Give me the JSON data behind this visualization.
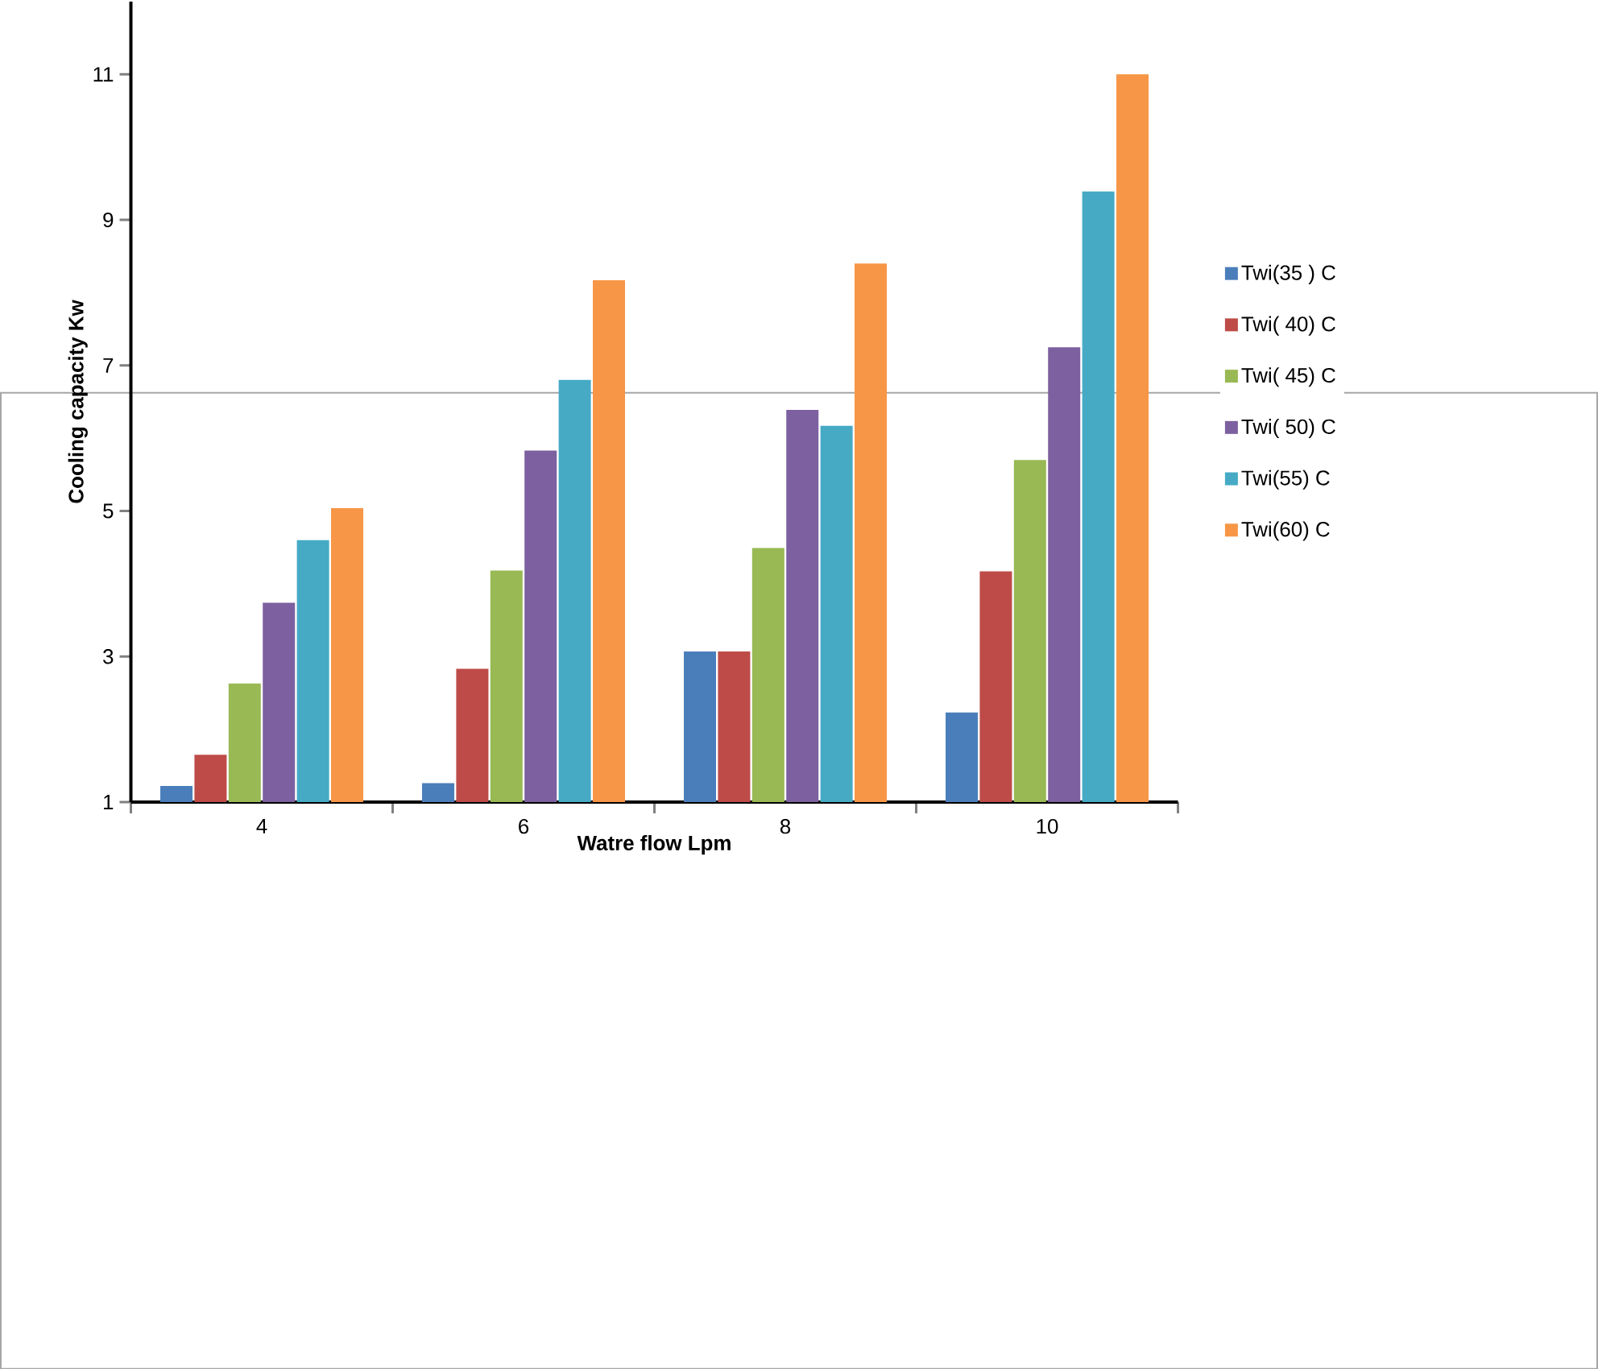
{
  "chart_data": {
    "type": "bar",
    "xlabel": "Watre flow Lpm",
    "ylabel": "Cooling capacity Kw",
    "categories": [
      "4",
      "6",
      "8",
      "10"
    ],
    "series": [
      {
        "name": "Twi(35 ) C",
        "color": "#4a7ebb",
        "values": [
          1.22,
          1.26,
          3.07,
          2.23
        ]
      },
      {
        "name": "Twi( 40) C",
        "color": "#be4b48",
        "values": [
          1.65,
          2.83,
          3.07,
          4.17
        ]
      },
      {
        "name": "Twi( 45) C",
        "color": "#98b954",
        "values": [
          2.63,
          4.18,
          4.49,
          5.7
        ]
      },
      {
        "name": "Twi( 50) C",
        "color": "#7d60a0",
        "values": [
          3.74,
          5.83,
          6.39,
          7.25
        ]
      },
      {
        "name": "Twi(55) C",
        "color": "#46aac5",
        "values": [
          4.6,
          6.8,
          6.17,
          9.39
        ]
      },
      {
        "name": "Twi(60) C",
        "color": "#f79646",
        "values": [
          5.04,
          8.17,
          8.4,
          11.0
        ]
      }
    ],
    "ylim": [
      1,
      12
    ],
    "yticks": [
      1,
      3,
      5,
      7,
      9,
      11
    ],
    "grid": false,
    "legend": "right"
  }
}
